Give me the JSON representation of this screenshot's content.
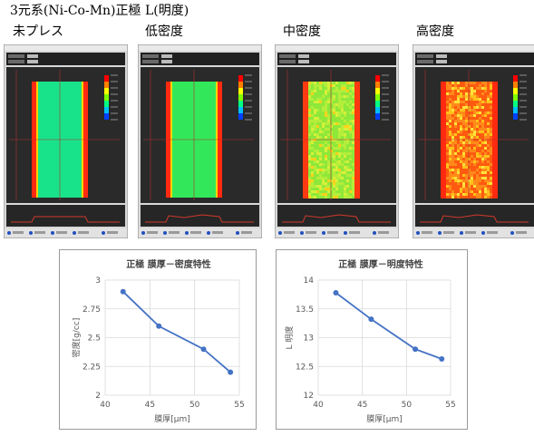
{
  "title": "3元系(Ni-Co-Mn)正極 L(明度)",
  "panels": [
    {
      "label": "未プレス",
      "stage": "unpressed",
      "fill": "#19e38a",
      "edge": "#ff2a10"
    },
    {
      "label": "低密度",
      "stage": "low",
      "fill": "#32e85a",
      "edge": "#ff2a10"
    },
    {
      "label": "中密度",
      "stage": "mid",
      "fill": "#8ee83a",
      "edge": "#ff2a10"
    },
    {
      "label": "高密度",
      "stage": "high",
      "fill": "#ff6a10",
      "edge": "#ff2a10"
    }
  ],
  "chart_data": [
    {
      "type": "line",
      "title": "正極 膜厚－密度特性",
      "xlabel": "膜厚[μm]",
      "ylabel": "密度[g/cc]",
      "xlim": [
        40,
        55
      ],
      "ylim": [
        2,
        3
      ],
      "xticks": [
        "40",
        "45",
        "50",
        "55"
      ],
      "yticks": [
        "2",
        "2.25",
        "2.5",
        "2.75",
        "3"
      ],
      "x": [
        42,
        46,
        51,
        54
      ],
      "y": [
        2.9,
        2.6,
        2.4,
        2.2
      ],
      "color": "#4472c4",
      "grid": true
    },
    {
      "type": "line",
      "title": "正極 膜厚－明度特性",
      "xlabel": "膜厚[μm]",
      "ylabel": "L 明度",
      "xlim": [
        40,
        55
      ],
      "ylim": [
        12,
        14
      ],
      "xticks": [
        "40",
        "45",
        "50",
        "55"
      ],
      "yticks": [
        "12",
        "12.5",
        "13",
        "13.5",
        "14"
      ],
      "x": [
        42,
        46,
        51,
        54
      ],
      "y": [
        13.78,
        13.32,
        12.8,
        12.63
      ],
      "color": "#4472c4",
      "grid": true
    }
  ]
}
